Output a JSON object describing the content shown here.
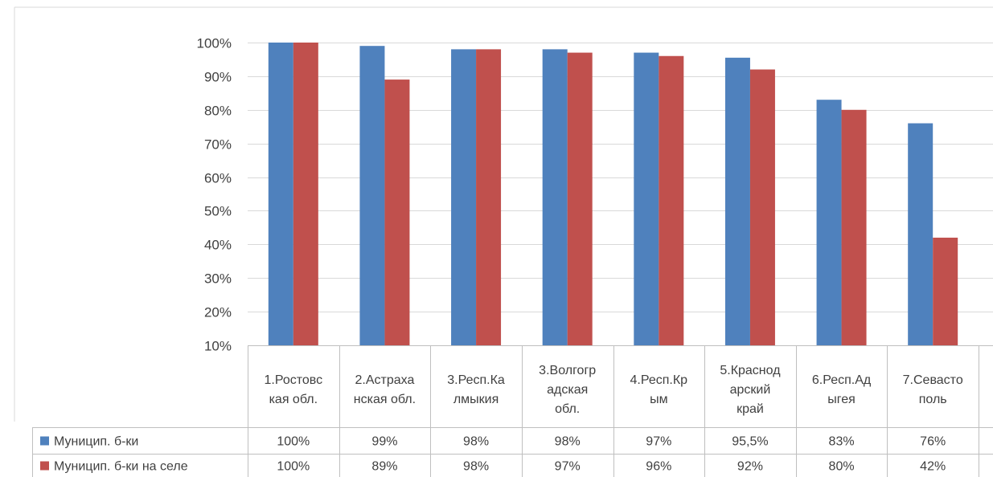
{
  "chart_data": {
    "type": "bar",
    "title": "",
    "xlabel": "",
    "ylabel": "",
    "ylim": [
      0.1,
      1.0
    ],
    "y_ticks": [
      "100%",
      "90%",
      "80%",
      "70%",
      "60%",
      "50%",
      "40%",
      "30%",
      "20%",
      "10%"
    ],
    "grid": true,
    "legend": "data-table",
    "categories": [
      [
        "1.Ростовс",
        "кая обл."
      ],
      [
        "2.Астраха",
        "нская обл."
      ],
      [
        "3.Респ.Ка",
        "лмыкия"
      ],
      [
        "3.Волгогр",
        "адская",
        "обл."
      ],
      [
        "4.Респ.Кр",
        "ым"
      ],
      [
        "5.Краснод",
        "арский",
        "край"
      ],
      [
        "6.Респ.Ад",
        "ыгея"
      ],
      [
        "7.Севасто",
        "поль"
      ]
    ],
    "series": [
      {
        "name": "Муницип. б-ки",
        "color": "#4f81bd",
        "values": [
          1.0,
          0.99,
          0.98,
          0.98,
          0.97,
          0.955,
          0.83,
          0.76
        ],
        "labels": [
          "100%",
          "99%",
          "98%",
          "98%",
          "97%",
          "95,5%",
          "83%",
          "76%"
        ]
      },
      {
        "name": "Муницип. б-ки на селе",
        "color": "#c0504d",
        "values": [
          1.0,
          0.89,
          0.98,
          0.97,
          0.96,
          0.92,
          0.8,
          0.42
        ],
        "labels": [
          "100%",
          "89%",
          "98%",
          "97%",
          "96%",
          "92%",
          "80%",
          "42%"
        ]
      }
    ]
  }
}
